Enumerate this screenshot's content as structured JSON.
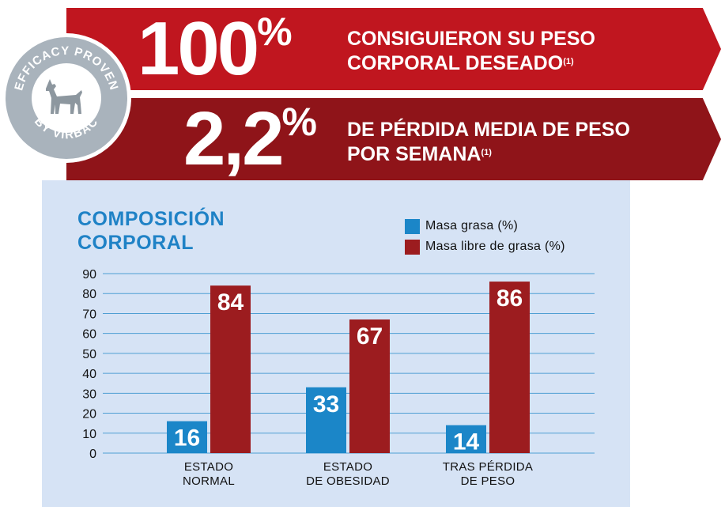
{
  "banners": [
    {
      "value": "100",
      "unit": "%",
      "line1": "CONSIGUIERON SU PESO",
      "line2": "CORPORAL DESEADO",
      "ref": "(1)"
    },
    {
      "value": "2,2",
      "unit": "%",
      "line1": "DE PÉRDIDA MEDIA DE PESO",
      "line2": "POR SEMANA",
      "ref": "(1)"
    }
  ],
  "badge": {
    "top_text": "EFFICACY PROVEN",
    "bottom_text": "BY VIRBAC"
  },
  "colors": {
    "banner1": "#c0161f",
    "banner2": "#8f1419",
    "fat": "#1b86c8",
    "lean": "#9c1c1f",
    "title": "#1f82c6",
    "panel": "#d6e3f5",
    "grid": "#4f9fd3"
  },
  "chart_data": {
    "type": "bar",
    "title_line1": "COMPOSICIÓN",
    "title_line2": "CORPORAL",
    "categories": [
      [
        "ESTADO",
        "NORMAL"
      ],
      [
        "ESTADO",
        "DE OBESIDAD"
      ],
      [
        "TRAS PÉRDIDA",
        "DE PESO"
      ]
    ],
    "series": [
      {
        "name": "Masa grasa (%)",
        "values": [
          16,
          33,
          14
        ],
        "color": "#1b86c8"
      },
      {
        "name": "Masa libre de grasa (%)",
        "values": [
          84,
          67,
          86
        ],
        "color": "#9c1c1f"
      }
    ],
    "yticks": [
      0,
      10,
      20,
      30,
      40,
      50,
      60,
      70,
      80,
      90
    ],
    "ylim": [
      0,
      90
    ],
    "grid": true,
    "legend": "top-right"
  }
}
